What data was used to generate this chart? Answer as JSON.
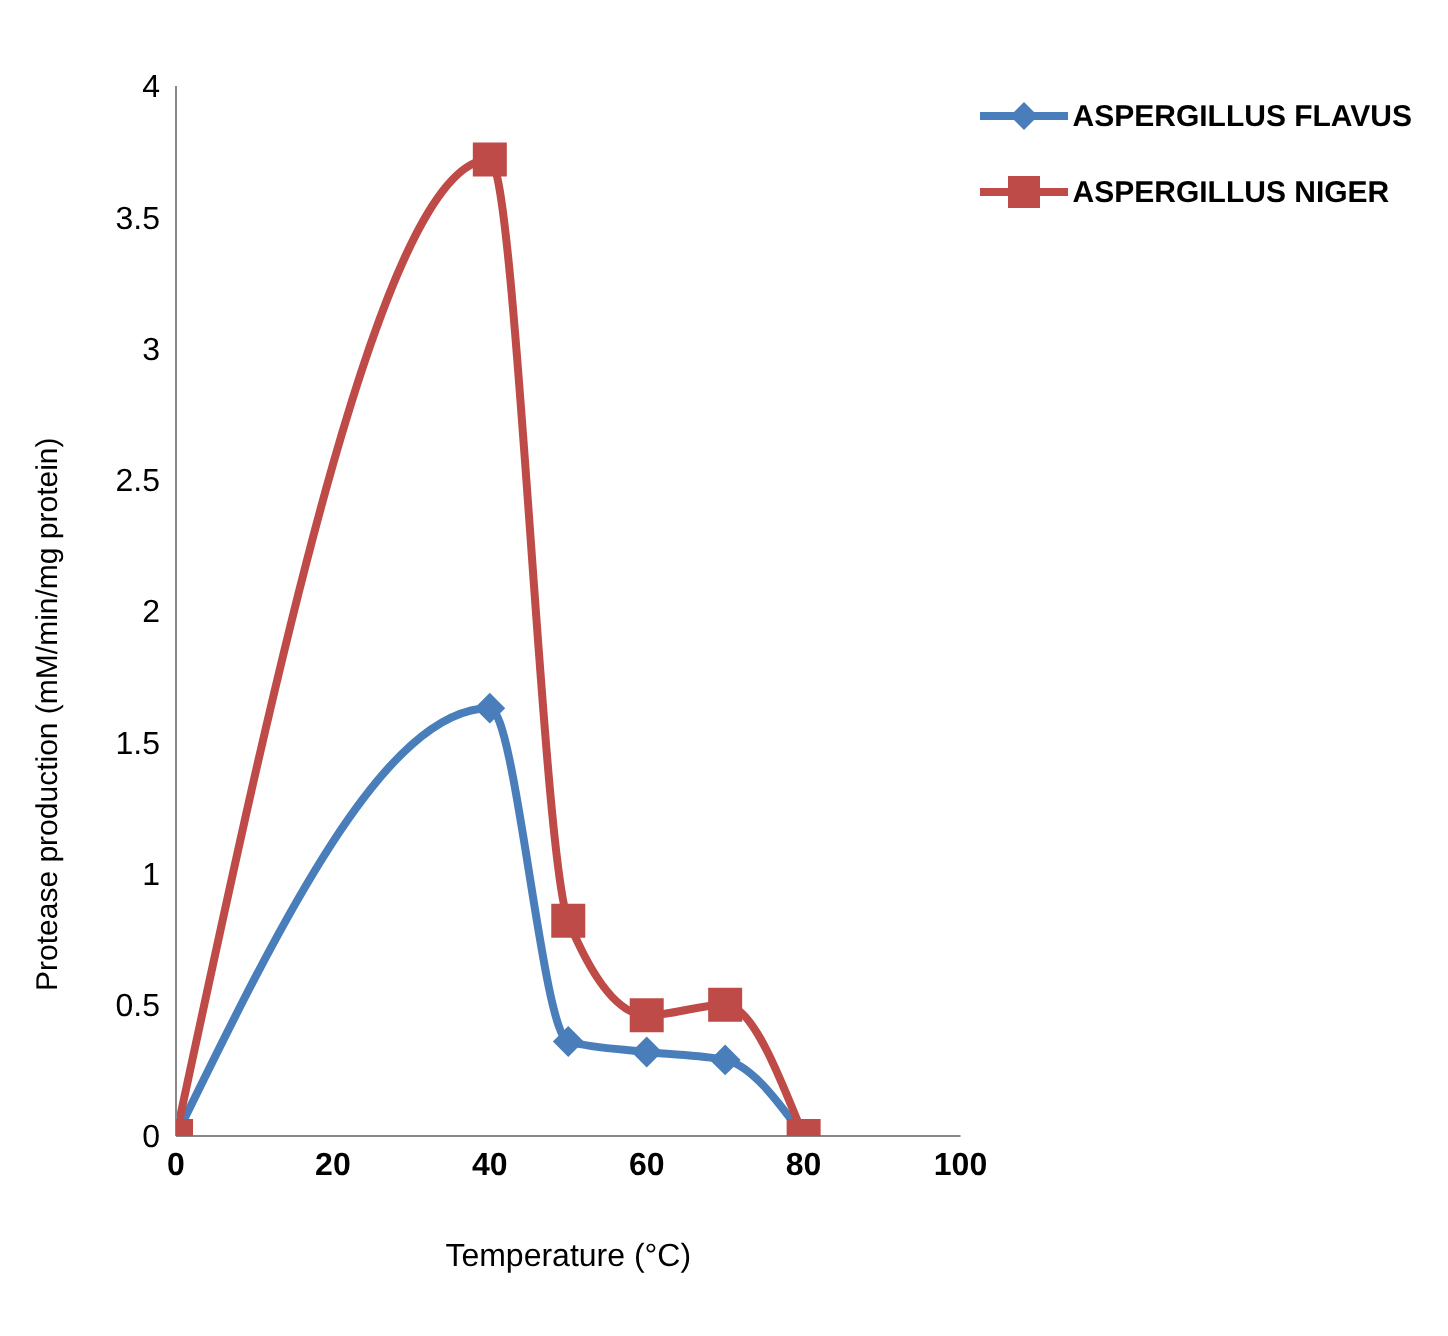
{
  "chart_data": {
    "type": "line",
    "xlabel": "Temperature (°C)",
    "ylabel": "Protease production (mM/min/mg  protein)",
    "x": [
      0,
      40,
      50,
      60,
      70,
      80
    ],
    "series": [
      {
        "name": "ASPERGILLUS FLAVUS",
        "color": "#4a7ebb",
        "marker": "diamond",
        "values": [
          0,
          1.63,
          0.36,
          0.32,
          0.29,
          0
        ]
      },
      {
        "name": "ASPERGILLUS NIGER",
        "color": "#be4b48",
        "marker": "square",
        "values": [
          0,
          3.72,
          0.82,
          0.46,
          0.5,
          0
        ]
      }
    ],
    "xlim": [
      0,
      100
    ],
    "xticks": [
      0,
      20,
      40,
      60,
      80,
      100
    ],
    "ylim": [
      0,
      4
    ],
    "yticks": [
      0,
      0.5,
      1,
      1.5,
      2,
      2.5,
      3,
      3.5,
      4
    ],
    "grid": false,
    "legend": "top right"
  }
}
